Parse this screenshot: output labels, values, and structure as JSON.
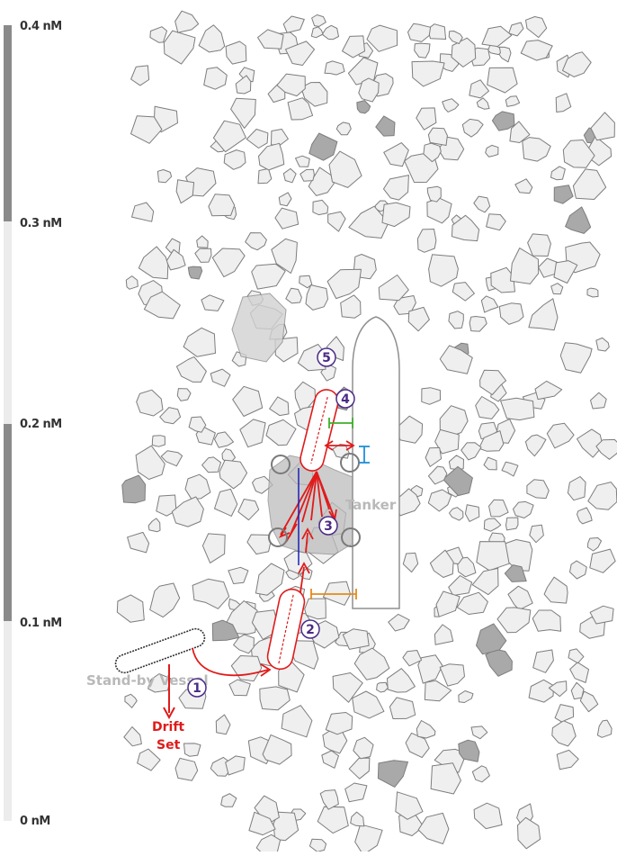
{
  "scale": {
    "labels": [
      "0.4 nM",
      "0.3 nM",
      "0.2 nM",
      "0.1 nM",
      "0 nM"
    ],
    "bar_color": "#888888"
  },
  "vessels": {
    "tanker_label": "Tanker",
    "standby_label": "Stand-by Vessel"
  },
  "drift": {
    "line1": "Drift",
    "line2": "Set"
  },
  "steps": [
    "1",
    "2",
    "3",
    "4",
    "5"
  ],
  "colors": {
    "ice_fill": "#efefef",
    "ice_stroke": "#7d7d7d",
    "dark_ice": "#a9a9a9",
    "maneuver": "#e01b1b",
    "step_circle": "#4b2a86",
    "measure_green": "#3fae2c",
    "measure_blue": "#1f8fd8",
    "measure_orange": "#e58a1c",
    "centerline_blue": "#1d1dba"
  }
}
